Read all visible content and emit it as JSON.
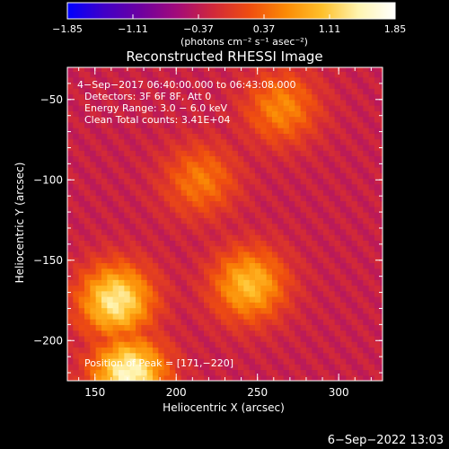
{
  "colorbar": {
    "min_label": "−1.85",
    "tick_labels": [
      "−1.85",
      "−1.11",
      "−0.37",
      "0.37",
      "1.11",
      "1.85"
    ],
    "tick_values": [
      -1.85,
      -1.11,
      -0.37,
      0.37,
      1.11,
      1.85
    ],
    "unit_label": "(photons cm⁻² s⁻¹ asec⁻²)",
    "colors": [
      "#0000ff",
      "#4000c8",
      "#6d00a0",
      "#a20a7a",
      "#d1283a",
      "#ef4d10",
      "#fb8a05",
      "#ffc02b",
      "#fff4b0",
      "#ffffff"
    ]
  },
  "chart_data": {
    "type": "heatmap",
    "title": "Reconstructed RHESSI Image",
    "xlabel": "Heliocentric X (arcsec)",
    "ylabel": "Heliocentric Y (arcsec)",
    "xlim": [
      133,
      327
    ],
    "ylim": [
      -225,
      -30
    ],
    "x_ticks": [
      150,
      200,
      250,
      300
    ],
    "y_ticks": [
      -50,
      -100,
      -150,
      -200
    ],
    "x_tick_labels": [
      "150",
      "200",
      "250",
      "300"
    ],
    "y_tick_labels": [
      "−50",
      "−100",
      "−150",
      "−200"
    ],
    "value_range": [
      -1.85,
      1.85
    ],
    "info_lines": [
      " 4−Sep−2017 06:40:00.000 to 06:43:08.000",
      "Detectors: 3F 6F 8F, Att 0",
      "Energy Range: 3.0 − 6.0 keV",
      "Clean    Total counts: 3.41E+04"
    ],
    "peak_label": "Position of Peak = [171,−220]",
    "peak": [
      171,
      -220
    ],
    "sources": [
      {
        "x": 171,
        "y": -220,
        "value": 1.85
      },
      {
        "x": 163,
        "y": -175,
        "value": 1.7
      },
      {
        "x": 245,
        "y": -165,
        "value": 1.3
      },
      {
        "x": 215,
        "y": -100,
        "value": 0.8
      },
      {
        "x": 265,
        "y": -55,
        "value": 0.9
      }
    ]
  },
  "footer": {
    "timestamp": "6−Sep−2022 13:03"
  }
}
